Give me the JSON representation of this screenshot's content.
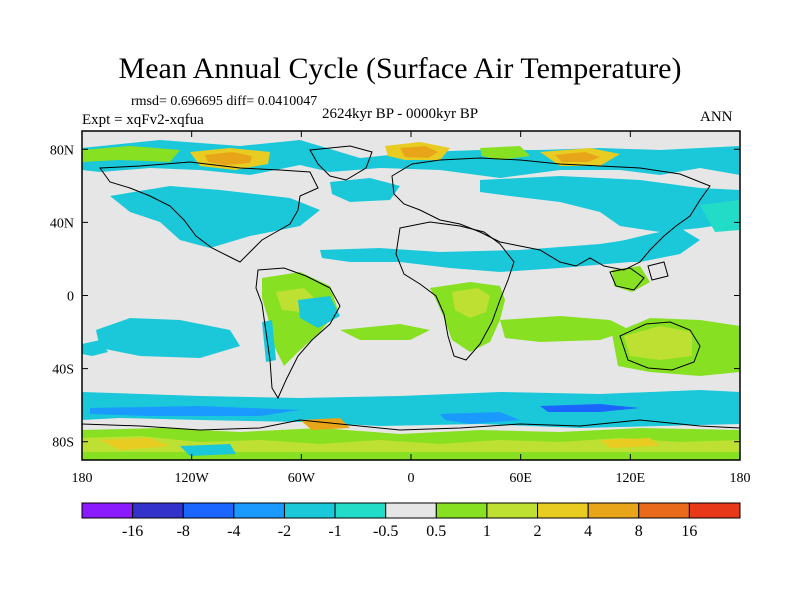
{
  "title": "Mean Annual Cycle (Surface Air Temperature)",
  "stats": "rmsd= 0.696695 diff= 0.0410047",
  "experiment": "Expt = xqFv2-xqfua",
  "period": "2624kyr BP - 0000kyr BP",
  "season": "ANN",
  "map": {
    "lon_range": [
      -180,
      180
    ],
    "lat_range": [
      -90,
      90
    ],
    "background_color": "#e6e6e6",
    "lon_ticks": [
      {
        "value": -180,
        "label": "180"
      },
      {
        "value": -120,
        "label": "120W"
      },
      {
        "value": -60,
        "label": "60W"
      },
      {
        "value": 0,
        "label": "0"
      },
      {
        "value": 60,
        "label": "60E"
      },
      {
        "value": 120,
        "label": "120E"
      },
      {
        "value": 180,
        "label": "180"
      }
    ],
    "lat_ticks": [
      {
        "value": 80,
        "label": "80N"
      },
      {
        "value": 40,
        "label": "40N"
      },
      {
        "value": 0,
        "label": "0"
      },
      {
        "value": -40,
        "label": "40S"
      },
      {
        "value": -80,
        "label": "80S"
      }
    ]
  },
  "colorbar": {
    "colors": [
      "#8c1aff",
      "#3333cc",
      "#1a66ff",
      "#1a99ff",
      "#1ac8d9",
      "#22dcc8",
      "#e6e6e6",
      "#88e022",
      "#bde033",
      "#e8cc22",
      "#e8a51a",
      "#e86a1a",
      "#e8381a"
    ],
    "labels": [
      "-16",
      "-8",
      "-4",
      "-2",
      "-1",
      "-0.5",
      "0.5",
      "1",
      "2",
      "4",
      "8",
      "16"
    ]
  },
  "colors": {
    "cyan": "#1ac8d9",
    "teal": "#22dcc8",
    "blue": "#1a99ff",
    "dark_blue": "#1a66ff",
    "green": "#88e022",
    "yellow_green": "#bde033",
    "yellow": "#e8cc22",
    "orange": "#e8a51a",
    "red_orange": "#e86a1a"
  }
}
